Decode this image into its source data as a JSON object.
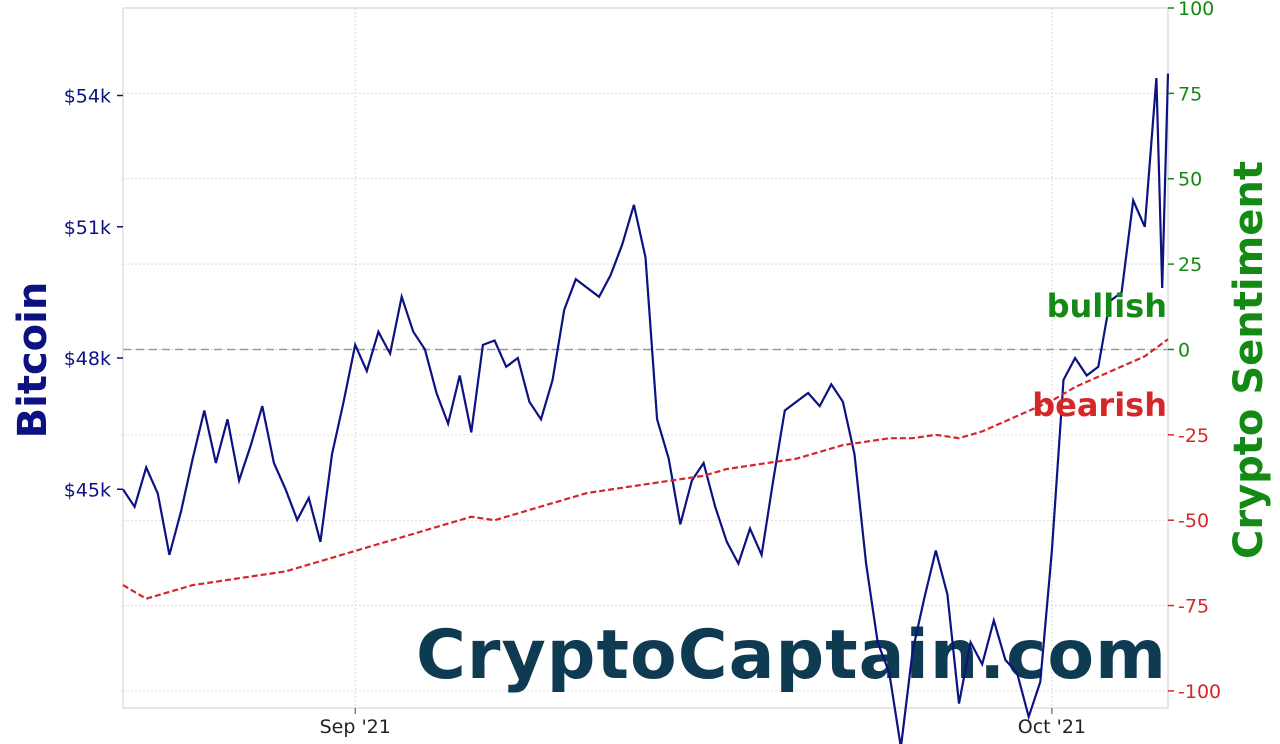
{
  "chart_data": {
    "type": "line",
    "left_axis_title": "Bitcoin",
    "right_axis_title": "Crypto Sentiment",
    "x_ticks": [
      "Sep '21",
      "Oct '21"
    ],
    "left_ticks": [
      "$45k",
      "$48k",
      "$51k",
      "$54k"
    ],
    "right_ticks": [
      "100",
      "75",
      "50",
      "25",
      "0",
      "-25",
      "-50",
      "-75",
      "-100"
    ],
    "left_ylim": [
      40000,
      56000
    ],
    "right_ylim": [
      -105,
      100
    ],
    "grid": true,
    "zero_line": 0,
    "annotations": {
      "bullish": "bullish",
      "bearish": "bearish"
    },
    "watermark": "CryptoCaptain.com",
    "colors": {
      "bitcoin": "#0d1282",
      "sentiment": "#d62728",
      "right_axis": "#138a13",
      "bearish": "#d62728",
      "watermark": "#0e3a52",
      "grid": "#d9d9d9",
      "zero_line": "#999999"
    },
    "x_range": [
      "2021-08-22",
      "2021-10-06"
    ],
    "series": [
      {
        "name": "Bitcoin",
        "axis": "left",
        "points": [
          [
            "2021-08-22",
            45000
          ],
          [
            "2021-08-22T12",
            44600
          ],
          [
            "2021-08-23",
            45500
          ],
          [
            "2021-08-23T12",
            44900
          ],
          [
            "2021-08-24",
            43500
          ],
          [
            "2021-08-24T12",
            44500
          ],
          [
            "2021-08-25",
            45700
          ],
          [
            "2021-08-25T12",
            46800
          ],
          [
            "2021-08-26",
            45600
          ],
          [
            "2021-08-26T12",
            46600
          ],
          [
            "2021-08-27",
            45200
          ],
          [
            "2021-08-27T12",
            46000
          ],
          [
            "2021-08-28",
            46900
          ],
          [
            "2021-08-28T12",
            45600
          ],
          [
            "2021-08-29",
            45000
          ],
          [
            "2021-08-29T12",
            44300
          ],
          [
            "2021-08-30",
            44800
          ],
          [
            "2021-08-30T12",
            43800
          ],
          [
            "2021-08-31",
            45800
          ],
          [
            "2021-08-31T12",
            47000
          ],
          [
            "2021-09-01",
            48300
          ],
          [
            "2021-09-01T12",
            47700
          ],
          [
            "2021-09-02",
            48600
          ],
          [
            "2021-09-02T12",
            48100
          ],
          [
            "2021-09-03",
            49400
          ],
          [
            "2021-09-03T12",
            48600
          ],
          [
            "2021-09-04",
            48200
          ],
          [
            "2021-09-04T12",
            47200
          ],
          [
            "2021-09-05",
            46500
          ],
          [
            "2021-09-05T12",
            47600
          ],
          [
            "2021-09-06",
            46300
          ],
          [
            "2021-09-06T12",
            48300
          ],
          [
            "2021-09-07",
            48400
          ],
          [
            "2021-09-07T12",
            47800
          ],
          [
            "2021-09-08",
            48000
          ],
          [
            "2021-09-08T12",
            47000
          ],
          [
            "2021-09-09",
            46600
          ],
          [
            "2021-09-09T12",
            47500
          ],
          [
            "2021-09-10",
            49100
          ],
          [
            "2021-09-10T12",
            49800
          ],
          [
            "2021-09-11",
            49600
          ],
          [
            "2021-09-11T12",
            49400
          ],
          [
            "2021-09-12",
            49900
          ],
          [
            "2021-09-12T12",
            50600
          ],
          [
            "2021-09-13",
            51500
          ],
          [
            "2021-09-13T12",
            50300
          ],
          [
            "2021-09-14",
            46600
          ],
          [
            "2021-09-14T12",
            45700
          ],
          [
            "2021-09-15",
            44200
          ],
          [
            "2021-09-15T12",
            45200
          ],
          [
            "2021-09-16",
            45600
          ],
          [
            "2021-09-16T12",
            44600
          ],
          [
            "2021-09-17",
            43800
          ],
          [
            "2021-09-17T12",
            43300
          ],
          [
            "2021-09-18",
            44100
          ],
          [
            "2021-09-18T12",
            43500
          ],
          [
            "2021-09-19",
            45200
          ],
          [
            "2021-09-19T12",
            46800
          ],
          [
            "2021-09-20",
            47000
          ],
          [
            "2021-09-20T12",
            47200
          ],
          [
            "2021-09-21",
            46900
          ],
          [
            "2021-09-21T12",
            47400
          ],
          [
            "2021-09-22",
            47000
          ],
          [
            "2021-09-22T12",
            45800
          ],
          [
            "2021-09-23",
            43300
          ],
          [
            "2021-09-23T12",
            41500
          ],
          [
            "2021-09-24",
            40800
          ],
          [
            "2021-09-24T12",
            39100
          ],
          [
            "2021-09-25",
            41300
          ],
          [
            "2021-09-25T12",
            42500
          ],
          [
            "2021-09-26",
            43600
          ],
          [
            "2021-09-26T12",
            42600
          ],
          [
            "2021-09-27",
            40100
          ],
          [
            "2021-09-27T12",
            41500
          ],
          [
            "2021-09-28",
            41000
          ],
          [
            "2021-09-28T12",
            42000
          ],
          [
            "2021-09-29",
            41100
          ],
          [
            "2021-09-29T12",
            40800
          ],
          [
            "2021-09-30",
            39800
          ],
          [
            "2021-09-30T12",
            40600
          ],
          [
            "2021-10-01",
            43600
          ],
          [
            "2021-10-01T12",
            47500
          ],
          [
            "2021-10-02",
            48000
          ],
          [
            "2021-10-02T12",
            47600
          ],
          [
            "2021-10-03",
            47800
          ],
          [
            "2021-10-03T12",
            49300
          ],
          [
            "2021-10-04",
            49500
          ],
          [
            "2021-10-04T12",
            51600
          ],
          [
            "2021-10-05",
            51000
          ],
          [
            "2021-10-05T12",
            54400
          ],
          [
            "2021-10-05T18",
            49600
          ],
          [
            "2021-10-06",
            54500
          ]
        ]
      },
      {
        "name": "Crypto Sentiment",
        "axis": "right",
        "points": [
          [
            "2021-08-22",
            -69
          ],
          [
            "2021-08-23",
            -73
          ],
          [
            "2021-08-24",
            -71
          ],
          [
            "2021-08-25",
            -69
          ],
          [
            "2021-08-26",
            -68
          ],
          [
            "2021-08-27",
            -67
          ],
          [
            "2021-08-28",
            -66
          ],
          [
            "2021-08-29",
            -65
          ],
          [
            "2021-08-30",
            -63
          ],
          [
            "2021-08-31",
            -61
          ],
          [
            "2021-09-01",
            -59
          ],
          [
            "2021-09-02",
            -57
          ],
          [
            "2021-09-03",
            -55
          ],
          [
            "2021-09-04",
            -53
          ],
          [
            "2021-09-05",
            -51
          ],
          [
            "2021-09-06",
            -49
          ],
          [
            "2021-09-07",
            -50
          ],
          [
            "2021-09-08",
            -48
          ],
          [
            "2021-09-09",
            -46
          ],
          [
            "2021-09-10",
            -44
          ],
          [
            "2021-09-11",
            -42
          ],
          [
            "2021-09-12",
            -41
          ],
          [
            "2021-09-13",
            -40
          ],
          [
            "2021-09-14",
            -39
          ],
          [
            "2021-09-15",
            -38
          ],
          [
            "2021-09-16",
            -37
          ],
          [
            "2021-09-17",
            -35
          ],
          [
            "2021-09-18",
            -34
          ],
          [
            "2021-09-19",
            -33
          ],
          [
            "2021-09-20",
            -32
          ],
          [
            "2021-09-21",
            -30
          ],
          [
            "2021-09-22",
            -28
          ],
          [
            "2021-09-23",
            -27
          ],
          [
            "2021-09-24",
            -26
          ],
          [
            "2021-09-25",
            -26
          ],
          [
            "2021-09-26",
            -25
          ],
          [
            "2021-09-27",
            -26
          ],
          [
            "2021-09-28",
            -24
          ],
          [
            "2021-09-29",
            -21
          ],
          [
            "2021-09-30",
            -18
          ],
          [
            "2021-10-01",
            -15
          ],
          [
            "2021-10-02",
            -11
          ],
          [
            "2021-10-03",
            -8
          ],
          [
            "2021-10-04",
            -5
          ],
          [
            "2021-10-05",
            -2
          ],
          [
            "2021-10-06",
            3
          ]
        ]
      }
    ]
  }
}
